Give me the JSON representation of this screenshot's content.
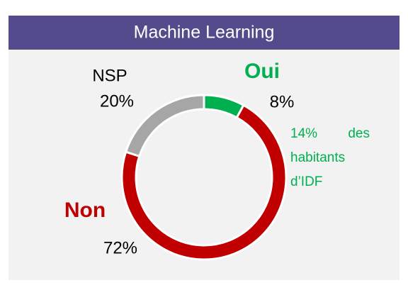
{
  "chart_data": {
    "type": "donut",
    "title": "Machine Learning",
    "categories": [
      "Oui",
      "Non",
      "NSP"
    ],
    "values": [
      8,
      72,
      20
    ],
    "value_labels": [
      "8%",
      "72%",
      "20%"
    ],
    "colors": [
      "#00b050",
      "#c00000",
      "#a6a6a6"
    ],
    "annotation": "14% des habitants d’IDF"
  }
}
